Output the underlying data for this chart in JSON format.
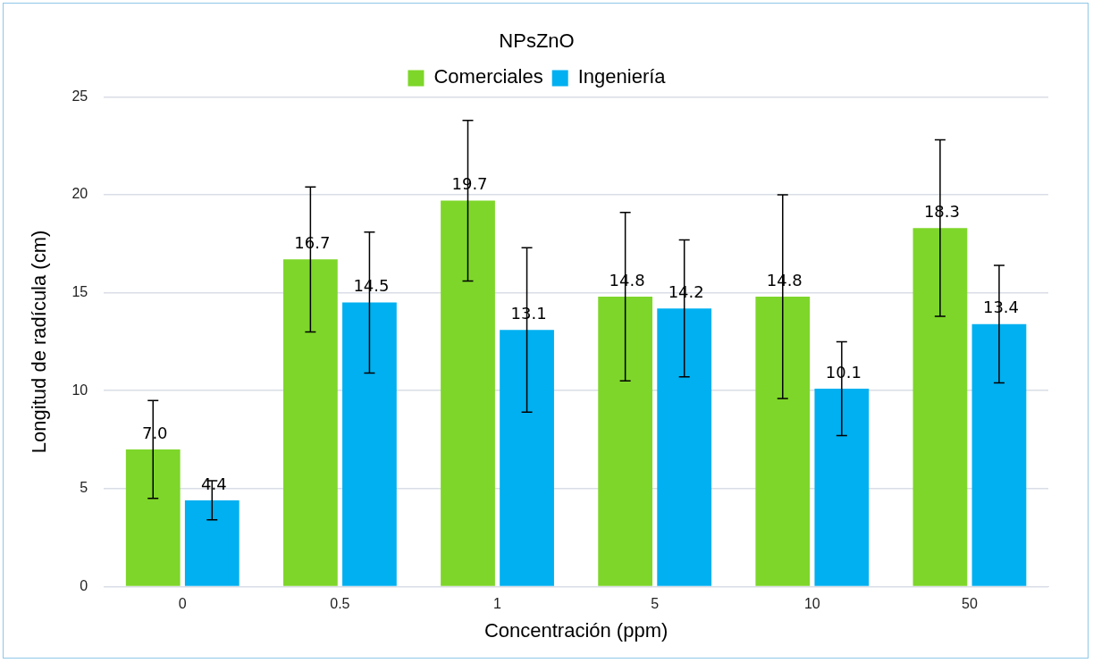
{
  "chart_data": {
    "type": "bar",
    "title": "NPsZnO",
    "xlabel": "Concentración (ppm)",
    "ylabel": "Longitud de radícula (cm)",
    "categories": [
      "0",
      "0.5",
      "1",
      "5",
      "10",
      "50"
    ],
    "series": [
      {
        "name": "Comerciales",
        "color": "#7ed62a",
        "values": [
          7.0,
          16.7,
          19.7,
          14.8,
          14.8,
          18.3
        ],
        "value_labels": [
          "7.0",
          "16.7",
          "19.7",
          "14.8",
          "14.8",
          "18.3"
        ],
        "errors": [
          2.5,
          3.7,
          4.1,
          4.3,
          5.2,
          4.5
        ]
      },
      {
        "name": "Ingeniería",
        "color": "#00b0f0",
        "values": [
          4.4,
          14.5,
          13.1,
          14.2,
          10.1,
          13.4
        ],
        "value_labels": [
          "4.4",
          "14.5",
          "13.1",
          "14.2",
          "10.1",
          "13.4"
        ],
        "errors": [
          1.0,
          3.6,
          4.2,
          3.5,
          2.4,
          3.0
        ]
      }
    ],
    "ylim": [
      0,
      25
    ],
    "yticks": [
      0,
      5,
      10,
      15,
      20,
      25
    ],
    "grid": "y",
    "legend": "top"
  }
}
